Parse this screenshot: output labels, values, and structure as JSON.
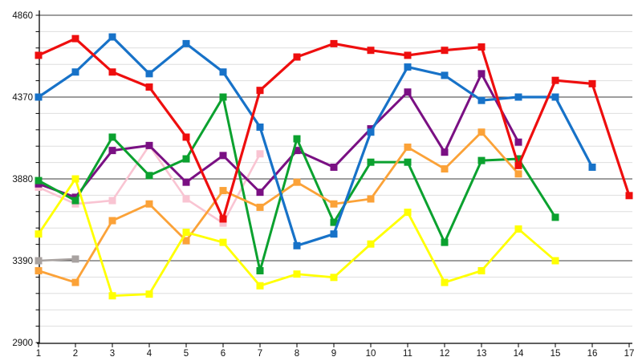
{
  "chart_data": {
    "type": "line",
    "title": "",
    "xlabel": "",
    "ylabel": "",
    "legend": "none",
    "grid": true,
    "background": "#ffffff",
    "axis_color": "#000000",
    "major_grid_color": "#3c3c3c",
    "minor_grid_color": "#dedede",
    "label_color": "#111111",
    "x": [
      1,
      2,
      3,
      4,
      5,
      6,
      7,
      8,
      9,
      10,
      11,
      12,
      13,
      14,
      15,
      16,
      17
    ],
    "x_tick_labels": [
      "1",
      "2",
      "3",
      "4",
      "5",
      "6",
      "7",
      "8",
      "9",
      "10",
      "11",
      "12",
      "13",
      "14",
      "15",
      "16",
      "17"
    ],
    "y_ticks": [
      4860,
      4370,
      3880,
      3390,
      2900
    ],
    "y_tick_labels": [
      "4860",
      "4370",
      "3880",
      "3390",
      "2900"
    ],
    "ylim": [
      2900,
      4860
    ],
    "minor_grid_step": 98,
    "marker": "square",
    "series": [
      {
        "name": "gray",
        "color": "#a8a2a0",
        "stroke_width": 2.6,
        "x_start": 1,
        "values": [
          3390,
          3400
        ]
      },
      {
        "name": "pink",
        "color": "#f9c4d2",
        "stroke_width": 2.6,
        "x_start": 1,
        "values": [
          3830,
          3730,
          3750,
          4080,
          3760,
          3615,
          4030
        ]
      },
      {
        "name": "purple",
        "color": "#7a1083",
        "stroke_width": 3,
        "x_start": 1,
        "values": [
          3850,
          3770,
          4050,
          4080,
          3860,
          4020,
          3800,
          4050,
          3950,
          4180,
          4400,
          4040,
          4510,
          4100
        ]
      },
      {
        "name": "green",
        "color": "#0ba12f",
        "stroke_width": 3,
        "x_start": 1,
        "values": [
          3870,
          3750,
          4130,
          3900,
          4000,
          4370,
          3330,
          4120,
          3620,
          3980,
          3980,
          3500,
          3990,
          4000,
          3650
        ]
      },
      {
        "name": "orange",
        "color": "#fba238",
        "stroke_width": 2.8,
        "x_start": 1,
        "values": [
          3330,
          3260,
          3630,
          3730,
          3510,
          3810,
          3710,
          3860,
          3730,
          3760,
          4070,
          3940,
          4160,
          3910
        ]
      },
      {
        "name": "yellow",
        "color": "#ffff00",
        "stroke_width": 2.8,
        "x_start": 1,
        "values": [
          3550,
          3880,
          3180,
          3190,
          3560,
          3500,
          3240,
          3310,
          3290,
          3490,
          3680,
          3260,
          3330,
          3580,
          3390
        ]
      },
      {
        "name": "blue",
        "color": "#1772c8",
        "stroke_width": 3.2,
        "x_start": 1,
        "values": [
          4370,
          4520,
          4730,
          4510,
          4690,
          4520,
          4190,
          3480,
          3550,
          4160,
          4550,
          4500,
          4350,
          4370,
          4370,
          3950
        ]
      },
      {
        "name": "red",
        "color": "#ee0e0e",
        "stroke_width": 3.2,
        "x_start": 1,
        "values": [
          4620,
          4720,
          4520,
          4430,
          4130,
          3640,
          4410,
          4610,
          4690,
          4650,
          4620,
          4650,
          4670,
          3960,
          4470,
          4450,
          3780
        ]
      }
    ]
  }
}
